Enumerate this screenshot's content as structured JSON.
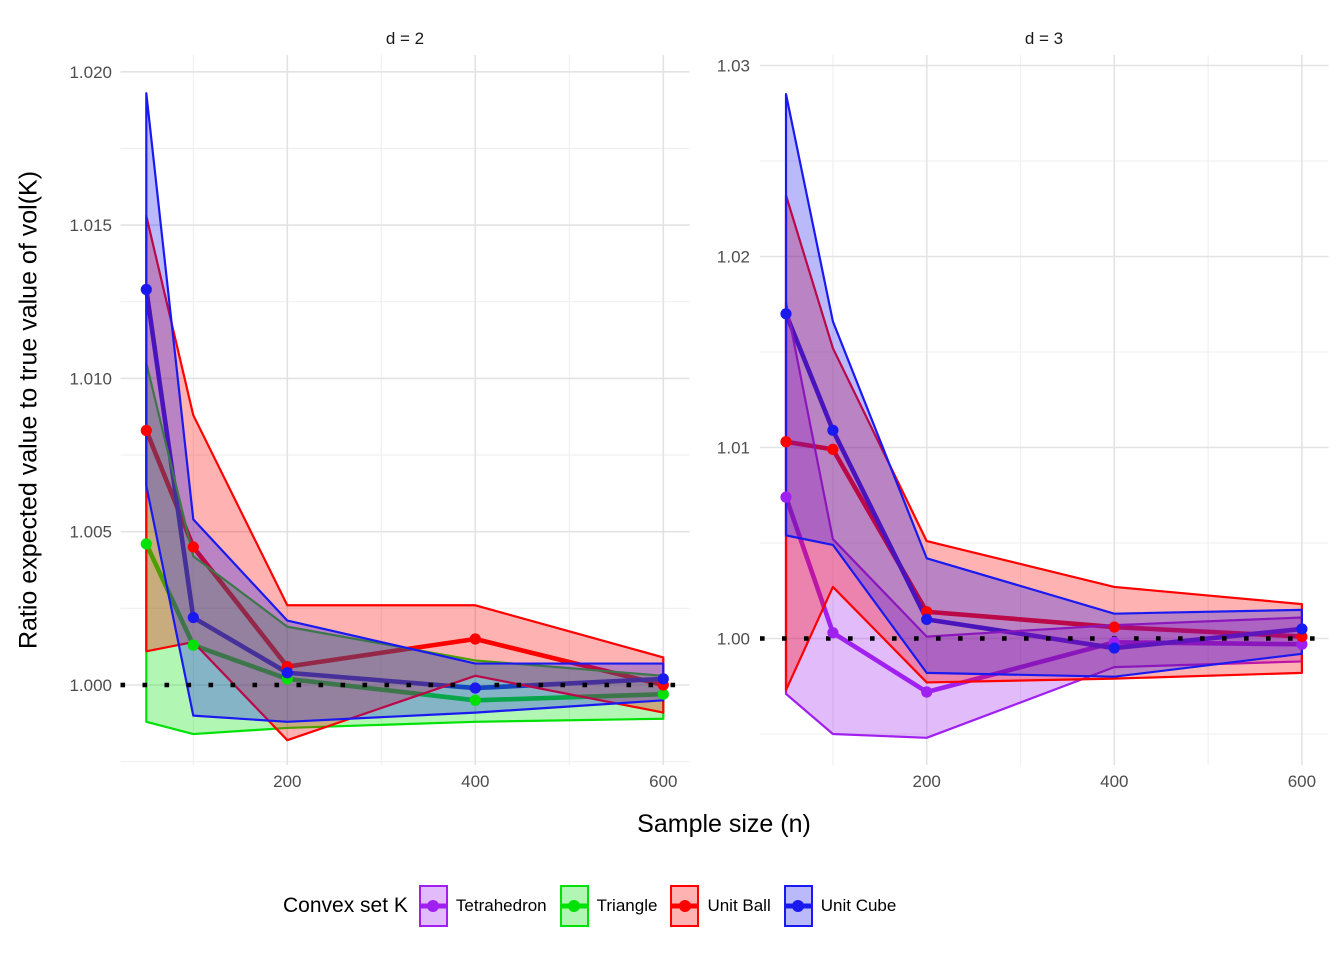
{
  "figure": {
    "y_axis_title": "Ratio expected value to true value of vol(K)",
    "x_axis_title": "Sample size (n)",
    "background_color": "#FFFFFF",
    "grid_major_color": "#E3E3E3",
    "grid_minor_color": "#EFEFEF",
    "tick_label_color": "#4D4D4D",
    "reference_line_color": "#000000"
  },
  "legend": {
    "title": "Convex set K",
    "items": [
      {
        "label": "Tetrahedron",
        "color": "#A020F0"
      },
      {
        "label": "Triangle",
        "color": "#00E205"
      },
      {
        "label": "Unit Ball",
        "color": "#FF0000"
      },
      {
        "label": "Unit Cube",
        "color": "#1A1AF0"
      }
    ]
  },
  "chart_data": {
    "type": "line",
    "title": "",
    "xlabel": "Sample size (n)",
    "ylabel": "Ratio expected value to true value of vol(K)",
    "x": [
      50,
      100,
      200,
      400,
      600
    ],
    "reference_line_y": 1.0,
    "legend_position": "bottom",
    "facets": [
      {
        "title": "d = 2",
        "y_axis": {
          "tick_labels": [
            "1.000",
            "1.005",
            "1.010",
            "1.015",
            "1.020"
          ],
          "tick_values": [
            1.0,
            1.005,
            1.01,
            1.015,
            1.02
          ],
          "minor_values": [
            0.9975,
            1.0025,
            1.0075,
            1.0125,
            1.0175
          ],
          "range": [
            0.9974,
            1.0206
          ]
        },
        "x_axis": {
          "tick_labels": [
            "200",
            "400",
            "600"
          ],
          "tick_values": [
            200,
            400,
            600
          ],
          "minor_values": [
            100,
            300,
            500
          ],
          "range": [
            22.5,
            627.5
          ]
        },
        "series": [
          {
            "name": "Triangle",
            "color": "#00E205",
            "mean": [
              1.0046,
              1.0013,
              1.0002,
              0.9995,
              0.9997
            ],
            "upper": [
              1.0105,
              1.0042,
              1.0019,
              1.0008,
              1.0003
            ],
            "lower": [
              0.9988,
              0.9984,
              0.9986,
              0.9988,
              0.9989
            ]
          },
          {
            "name": "Unit Ball",
            "color": "#FF0000",
            "mean": [
              1.0083,
              1.0045,
              1.0006,
              1.0015,
              1.0
            ],
            "upper": [
              1.0153,
              1.0088,
              1.0026,
              1.0026,
              1.0009
            ],
            "lower": [
              1.0011,
              1.0014,
              0.9982,
              1.0003,
              0.9991
            ]
          },
          {
            "name": "Unit Cube",
            "color": "#1A1AF0",
            "mean": [
              1.0129,
              1.0022,
              1.0004,
              0.9999,
              1.0002
            ],
            "upper": [
              1.0193,
              1.0054,
              1.0021,
              1.0007,
              1.0007
            ],
            "lower": [
              1.0065,
              0.999,
              0.9988,
              0.9991,
              0.9995
            ]
          }
        ]
      },
      {
        "title": "d = 3",
        "y_axis": {
          "tick_labels": [
            "1.00",
            "1.01",
            "1.02",
            "1.03"
          ],
          "tick_values": [
            1.0,
            1.01,
            1.02,
            1.03
          ],
          "minor_values": [
            0.995,
            1.005,
            1.015,
            1.025
          ],
          "range": [
            0.9934,
            1.0306
          ]
        },
        "x_axis": {
          "tick_labels": [
            "200",
            "400",
            "600"
          ],
          "tick_values": [
            200,
            400,
            600
          ],
          "minor_values": [
            100,
            300,
            500
          ],
          "range": [
            22.5,
            627.5
          ]
        },
        "series": [
          {
            "name": "Tetrahedron",
            "color": "#A020F0",
            "mean": [
              1.0074,
              1.0003,
              0.9972,
              0.9998,
              0.9997
            ],
            "upper": [
              1.0176,
              1.0052,
              1.0001,
              1.0007,
              1.0011
            ],
            "lower": [
              0.9971,
              0.995,
              0.9948,
              0.9985,
              0.9988
            ]
          },
          {
            "name": "Unit Ball",
            "color": "#FF0000",
            "mean": [
              1.0103,
              1.0099,
              1.0014,
              1.0006,
              1.0001
            ],
            "upper": [
              1.0232,
              1.0152,
              1.0051,
              1.0027,
              1.0018
            ],
            "lower": [
              0.9973,
              1.0027,
              0.9977,
              0.9979,
              0.9982
            ]
          },
          {
            "name": "Unit Cube",
            "color": "#1A1AF0",
            "mean": [
              1.017,
              1.0109,
              1.001,
              0.9995,
              1.0005
            ],
            "upper": [
              1.0285,
              1.0166,
              1.0042,
              1.0013,
              1.0015
            ],
            "lower": [
              1.0054,
              1.0049,
              0.9982,
              0.998,
              0.9992
            ]
          }
        ]
      }
    ]
  }
}
